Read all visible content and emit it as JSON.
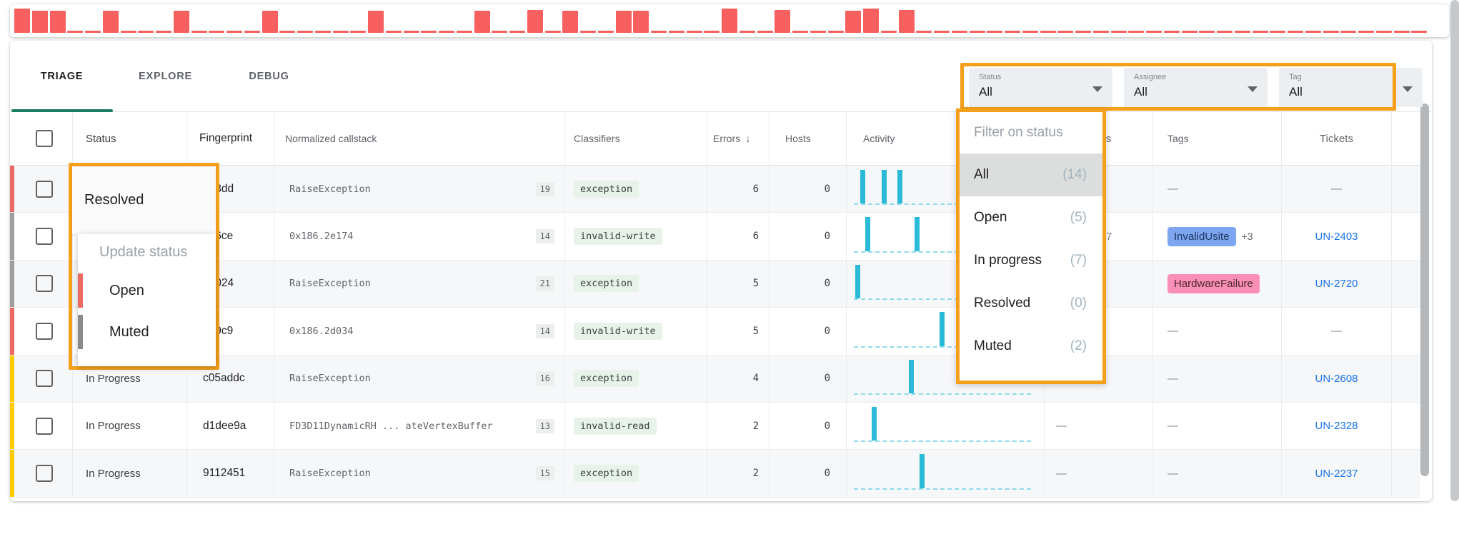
{
  "tabs": {
    "triage": "TRIAGE",
    "explore": "EXPLORE",
    "debug": "DEBUG"
  },
  "filters": {
    "status": {
      "label": "Status",
      "value": "All"
    },
    "assignee": {
      "label": "Assignee",
      "value": "All"
    },
    "tag": {
      "label": "Tag",
      "value": "All"
    }
  },
  "status_popup": {
    "current": "Resolved",
    "menu_title": "Update status",
    "options": [
      {
        "label": "Open",
        "color": "#ED6A64"
      },
      {
        "label": "Muted",
        "color": "#8A8A8A"
      }
    ]
  },
  "filter_dropdown": {
    "placeholder": "Filter on status",
    "options": [
      {
        "label": "All",
        "count": "(14)",
        "selected": true
      },
      {
        "label": "Open",
        "count": "(5)"
      },
      {
        "label": "In progress",
        "count": "(7)"
      },
      {
        "label": "Resolved",
        "count": "(0)"
      },
      {
        "label": "Muted",
        "count": "(2)"
      }
    ]
  },
  "table": {
    "headers": {
      "status": "Status",
      "fingerprint": "Fingerprint",
      "callstack": "Normalized callstack",
      "classifiers": "Classifiers",
      "errors": "Errors",
      "sort_icon": "↓",
      "hosts": "Hosts",
      "activity": "Activity",
      "assignees": "Assignees",
      "tags": "Tags",
      "tickets": "Tickets"
    },
    "rows": [
      {
        "status": "",
        "strip_color": "#ED6A64",
        "fingerprint": "563dd",
        "callstack": "RaiseException",
        "frames": "19",
        "classifier": "exception",
        "errors": "6",
        "hosts": "0",
        "activity": [
          0.035,
          0.155,
          0.245
        ],
        "assignee": "",
        "tags_text": "—",
        "ticket": "—"
      },
      {
        "status": "",
        "strip_color": "#9E9E9E",
        "fingerprint": "626ce",
        "callstack": "0x186.2e174",
        "frames": "14",
        "classifier": "invalid-write",
        "errors": "6",
        "hosts": "0",
        "activity": [
          0.065,
          0.34
        ],
        "assignee": "7",
        "assignee_indent": 86,
        "tag_chip": {
          "label": "InvalidUsite",
          "bg": "#7DA5F0",
          "text_color": "#1F3A63",
          "extra": "+3"
        },
        "ticket": "UN-2403"
      },
      {
        "status": "",
        "strip_color": "#9E9E9E",
        "fingerprint": "00024",
        "callstack": "RaiseException",
        "frames": "21",
        "classifier": "exception",
        "errors": "5",
        "hosts": "0",
        "activity": [
          0.01
        ],
        "assignee": "",
        "tag_chip": {
          "label": "HardwareFailure",
          "bg": "#F98FB5",
          "text_color": "#4A2532",
          "extra": ""
        },
        "ticket": "UN-2720"
      },
      {
        "status": "",
        "strip_color": "#ED6A64",
        "fingerprint": "d59c9",
        "callstack": "0x186.2d034",
        "frames": "14",
        "classifier": "invalid-write",
        "errors": "5",
        "hosts": "0",
        "activity": [
          0.48
        ],
        "assignee": "",
        "tags_text": "—",
        "ticket": "—"
      },
      {
        "status": "In Progress",
        "strip_color": "#FFCB05",
        "fingerprint": "c05addc",
        "callstack": "RaiseException",
        "frames": "16",
        "classifier": "exception",
        "errors": "4",
        "hosts": "0",
        "activity": [
          0.31
        ],
        "assignee": "",
        "tags_text": "—",
        "ticket": "UN-2608"
      },
      {
        "status": "In Progress",
        "strip_color": "#FFCB05",
        "fingerprint": "d1dee9a",
        "callstack": "FD3D11DynamicRH ... ateVertexBuffer",
        "frames": "13",
        "classifier": "invalid-read",
        "errors": "2",
        "hosts": "0",
        "activity": [
          0.1
        ],
        "assignee": "—",
        "tags_text": "—",
        "ticket": "UN-2328"
      },
      {
        "status": "In Progress",
        "strip_color": "#FFCB05",
        "fingerprint": "9112451",
        "callstack": "RaiseException",
        "frames": "15",
        "classifier": "exception",
        "errors": "2",
        "hosts": "0",
        "activity": [
          0.37
        ],
        "assignee": "—",
        "tags_text": "—",
        "ticket": "UN-2237"
      }
    ]
  },
  "colors": {
    "highlight_orange": "#F5A01B",
    "tab_underline_teal": "#1B7E63",
    "histogram_red": "#F85F5F",
    "activity_cyan": "#2BB9D9",
    "ticket_link_blue": "#1A73E8",
    "classifier_chip_green": "#E7F3E8",
    "strip_open_red": "#ED6A64",
    "strip_muted_gray": "#9E9E9E",
    "strip_in_progress_yellow": "#FFCB05"
  },
  "chart_data": {
    "histogram": {
      "type": "bar",
      "title": "errors-over-time-histogram",
      "color": "#F85F5F",
      "values": [
        1,
        0.9,
        0.9,
        0.07,
        0.07,
        0.9,
        0.07,
        0.07,
        0.07,
        0.9,
        0.07,
        0.07,
        0.07,
        0.07,
        0.9,
        0.07,
        0.07,
        0.07,
        0.07,
        0.07,
        0.9,
        0.07,
        0.07,
        0.07,
        0.07,
        0.07,
        0.9,
        0.07,
        0.07,
        0.95,
        0.07,
        0.9,
        0.07,
        0.07,
        0.9,
        0.9,
        0.07,
        0.07,
        0.07,
        0.07,
        1,
        0.07,
        0.07,
        0.95,
        0.07,
        0.07,
        0.07,
        0.92,
        1,
        0.07,
        0.95,
        0.07,
        0.07,
        0.07,
        0.07,
        0.07,
        0.07,
        0.07,
        0.07,
        0.07,
        0.07,
        0.07,
        0.07,
        0.07,
        0.07,
        0.07,
        0.07,
        0.07,
        0.07,
        0.07,
        0.07,
        0.07,
        0.07,
        0.07,
        0.07,
        0.07,
        0.07,
        0.07,
        0.07,
        0.07
      ]
    },
    "row_activity_sparklines": {
      "type": "bar",
      "color": "#2BB9D9",
      "series": [
        [
          0.035,
          0.155,
          0.245
        ],
        [
          0.065,
          0.34
        ],
        [
          0.01
        ],
        [
          0.48
        ],
        [
          0.31
        ],
        [
          0.1
        ],
        [
          0.37
        ]
      ]
    }
  }
}
